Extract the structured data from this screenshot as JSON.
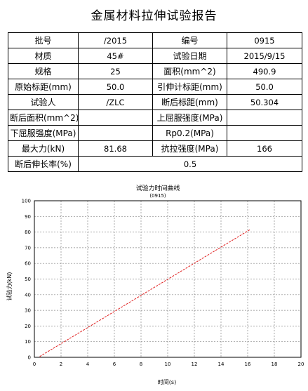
{
  "report": {
    "title": "金属材料拉伸试验报告",
    "rows": [
      [
        {
          "text": "批号"
        },
        {
          "text": "/2015"
        },
        {
          "text": "编号"
        },
        {
          "text": "0915"
        }
      ],
      [
        {
          "text": "材质"
        },
        {
          "text": "45#"
        },
        {
          "text": "试验日期"
        },
        {
          "text": "2015/9/15"
        }
      ],
      [
        {
          "text": "规格"
        },
        {
          "text": "25"
        },
        {
          "text": "面积(mm^2)"
        },
        {
          "text": "490.9"
        }
      ],
      [
        {
          "text": "原始标距(mm)"
        },
        {
          "text": "50.0"
        },
        {
          "text": "引伸计标距(mm)"
        },
        {
          "text": "50.0"
        }
      ],
      [
        {
          "text": "试验人"
        },
        {
          "text": "/ZLC"
        },
        {
          "text": "断后标距(mm)"
        },
        {
          "text": "50.304"
        }
      ],
      [
        {
          "text": "断后面积(mm^2)"
        },
        {
          "text": ""
        },
        {
          "text": "上屈服强度(MPa)"
        },
        {
          "text": ""
        }
      ],
      [
        {
          "text": "下屈服强度(MPa)"
        },
        {
          "text": ""
        },
        {
          "text": "Rp0.2(MPa)"
        },
        {
          "text": ""
        }
      ],
      [
        {
          "text": "最大力(kN)"
        },
        {
          "text": "81.68"
        },
        {
          "text": "抗拉强度(MPa)"
        },
        {
          "text": "166"
        }
      ],
      [
        {
          "text": "断后伸长率(%)"
        },
        {
          "text": "0.5",
          "colspan": 3
        }
      ]
    ]
  },
  "chart_data": {
    "type": "line",
    "title": "试验力时间曲线",
    "subtitle": "(0915)",
    "xlabel": "时间(s)",
    "ylabel": "试验力(kN)",
    "xlim": [
      0,
      20
    ],
    "ylim": [
      0,
      100
    ],
    "xticks": [
      0,
      2,
      4,
      6,
      8,
      10,
      12,
      14,
      16,
      18,
      20
    ],
    "yticks": [
      0,
      10,
      20,
      30,
      40,
      50,
      60,
      70,
      80,
      90,
      100
    ],
    "grid": true,
    "line_color": "#e02020",
    "series": [
      {
        "x": [
          0.4,
          16.2
        ],
        "y": [
          0.5,
          81.68
        ]
      }
    ]
  }
}
